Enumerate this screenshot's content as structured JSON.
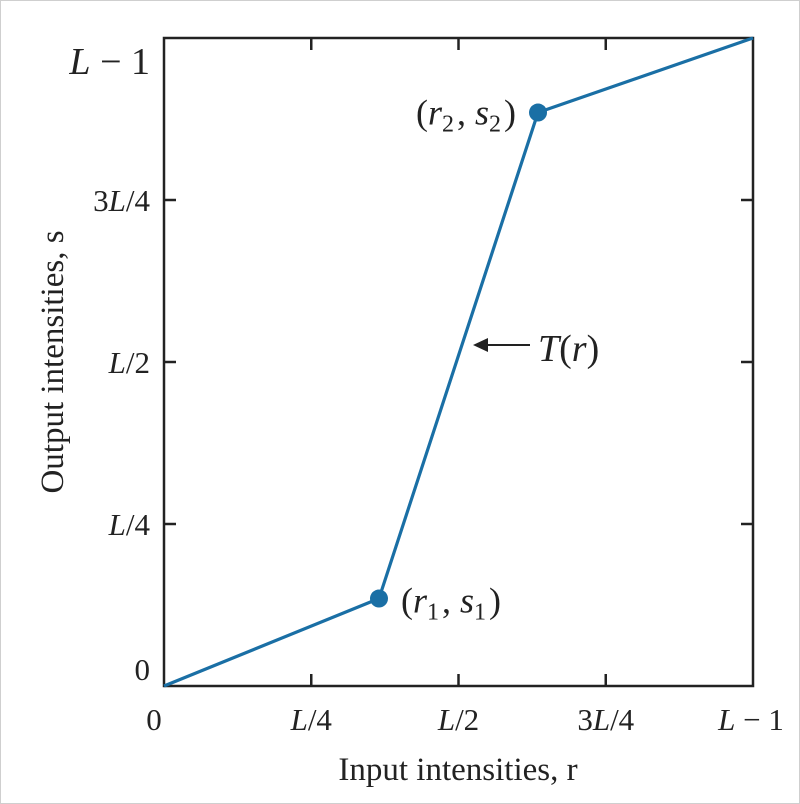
{
  "chart_data": {
    "type": "line",
    "xlabel": "Input intensities, r",
    "ylabel": "Output intensities, s",
    "x_ticks": [
      {
        "value": 0,
        "label": "0"
      },
      {
        "value": 0.25,
        "label": "L/4"
      },
      {
        "value": 0.5,
        "label": "L/2"
      },
      {
        "value": 0.75,
        "label": "3L/4"
      },
      {
        "value": 1,
        "label": "L − 1"
      }
    ],
    "y_ticks": [
      {
        "value": 0,
        "label": "0"
      },
      {
        "value": 0.25,
        "label": "L/4"
      },
      {
        "value": 0.5,
        "label": "L/2"
      },
      {
        "value": 0.75,
        "label": "3L/4"
      },
      {
        "value": 1,
        "label": "L − 1"
      }
    ],
    "xlim": [
      0,
      1
    ],
    "ylim": [
      0,
      1
    ],
    "series": [
      {
        "name": "T(r)",
        "color": "#1a6fa5",
        "points": [
          [
            0,
            0
          ],
          [
            0.365,
            0.135
          ],
          [
            0.635,
            0.885
          ],
          [
            1,
            1
          ]
        ]
      }
    ],
    "markers": [
      {
        "x": 0.365,
        "y": 0.135,
        "label": "(r1, s1)"
      },
      {
        "x": 0.635,
        "y": 0.885,
        "label": "(r2, s2)"
      }
    ],
    "annotation": {
      "text": "T(r)",
      "x": 0.5,
      "y": 0.5
    }
  }
}
